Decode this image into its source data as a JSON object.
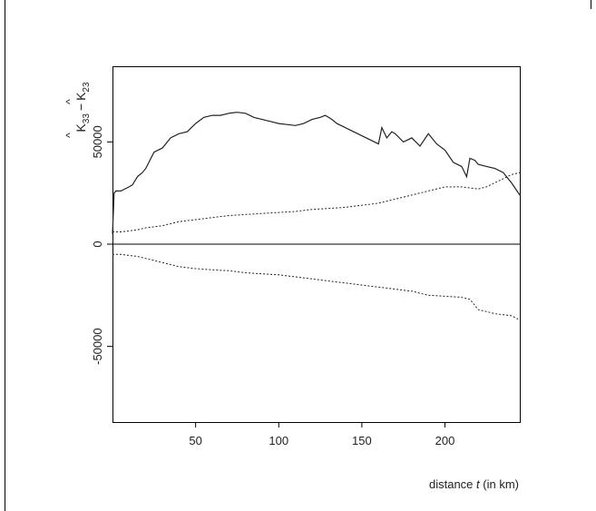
{
  "chart_data": {
    "type": "line",
    "ylabel_main": "K",
    "ylabel_sub_a": "33",
    "ylabel_minus": "−",
    "ylabel_sub_b": "23",
    "xlabel_prefix": "distance ",
    "xlabel_var": "t",
    "xlabel_suffix": " (in km)",
    "xlim": [
      0,
      245
    ],
    "ylim": [
      -87000,
      87000
    ],
    "xticks": [
      50,
      100,
      150,
      200
    ],
    "yticks": [
      -50000,
      0,
      50000
    ],
    "reference_line_y": 0,
    "series": [
      {
        "style": "solid",
        "x": [
          0,
          1,
          2,
          5,
          10,
          12,
          15,
          18,
          20,
          25,
          30,
          35,
          40,
          45,
          50,
          55,
          60,
          65,
          70,
          75,
          80,
          85,
          90,
          95,
          100,
          105,
          110,
          115,
          120,
          125,
          128,
          132,
          135,
          140,
          145,
          150,
          155,
          160,
          162,
          165,
          168,
          170,
          175,
          180,
          185,
          190,
          195,
          200,
          205,
          210,
          213,
          215,
          218,
          220,
          225,
          230,
          235,
          240,
          245
        ],
        "y": [
          5000,
          25000,
          26000,
          26000,
          28000,
          29000,
          33000,
          35000,
          37000,
          45000,
          47000,
          52000,
          54000,
          55000,
          59000,
          62000,
          63000,
          63000,
          64000,
          64500,
          64000,
          62000,
          61000,
          60000,
          59000,
          58500,
          58000,
          59000,
          61000,
          62000,
          63000,
          61000,
          59000,
          57000,
          55000,
          53000,
          51000,
          49000,
          57000,
          52000,
          55000,
          54000,
          50000,
          52000,
          48000,
          54000,
          49000,
          46000,
          40000,
          38000,
          33000,
          42000,
          41000,
          39000,
          38000,
          37000,
          35000,
          30000,
          24000
        ]
      },
      {
        "style": "dotted",
        "x": [
          0,
          5,
          10,
          15,
          20,
          30,
          40,
          50,
          60,
          70,
          80,
          90,
          100,
          110,
          120,
          130,
          140,
          150,
          160,
          170,
          180,
          190,
          200,
          210,
          220,
          225,
          230,
          235,
          240,
          245
        ],
        "y": [
          6000,
          6000,
          6500,
          7000,
          8000,
          9000,
          11000,
          12000,
          13000,
          14000,
          14500,
          15000,
          15500,
          16000,
          17000,
          17500,
          18000,
          19000,
          20000,
          22000,
          24000,
          26000,
          28000,
          28000,
          27000,
          28000,
          30000,
          32000,
          34000,
          35000
        ]
      },
      {
        "style": "dotted",
        "x": [
          0,
          5,
          10,
          15,
          20,
          25,
          30,
          35,
          40,
          45,
          50,
          60,
          70,
          80,
          90,
          100,
          110,
          120,
          130,
          140,
          150,
          160,
          170,
          180,
          190,
          200,
          210,
          215,
          218,
          220,
          225,
          230,
          240,
          245
        ],
        "y": [
          -5000,
          -5000,
          -5500,
          -6000,
          -7000,
          -8000,
          -9000,
          -10000,
          -11000,
          -11500,
          -12000,
          -12500,
          -13000,
          -14000,
          -14500,
          -15000,
          -16000,
          -17000,
          -18000,
          -19000,
          -20000,
          -21000,
          -22000,
          -23000,
          -25000,
          -25500,
          -26000,
          -27000,
          -30000,
          -32000,
          -33000,
          -34000,
          -35000,
          -37000
        ]
      }
    ]
  }
}
